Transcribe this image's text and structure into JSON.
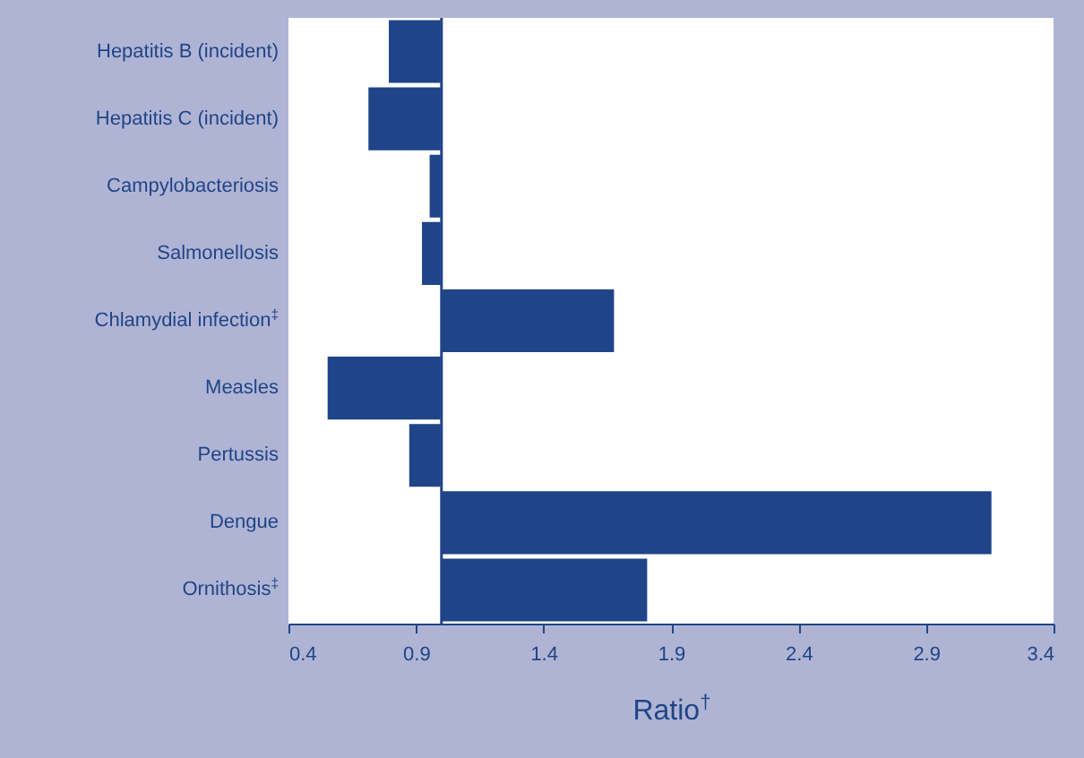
{
  "chart_data": {
    "type": "bar",
    "orientation": "horizontal",
    "categories": [
      "Hepatitis B (incident)",
      "Hepatitis C (incident)",
      "Campylobacteriosis",
      "Salmonellosis",
      "Chlamydial infection$^{‡}$",
      "Measles",
      "Pertussis",
      "Dengue",
      "Ornithosis$^{‡}$"
    ],
    "base": [
      1,
      1,
      1,
      1,
      1,
      1,
      1,
      1,
      1
    ],
    "values": [
      -0.21,
      -0.29,
      -0.05,
      -0.08,
      0.68,
      -0.45,
      -0.13,
      2.16,
      0.81
    ],
    "color": "#1f4488",
    "xlabel": "Ratio$^{†}$",
    "xlim": [
      0.4,
      3.4
    ],
    "xticks": [
      0.4,
      0.9,
      1.4,
      1.9,
      2.4,
      2.9,
      3.4
    ],
    "ref_lines": [
      {
        "axis": "x",
        "value": 1,
        "color": "#1f4488"
      }
    ],
    "grid": false
  }
}
